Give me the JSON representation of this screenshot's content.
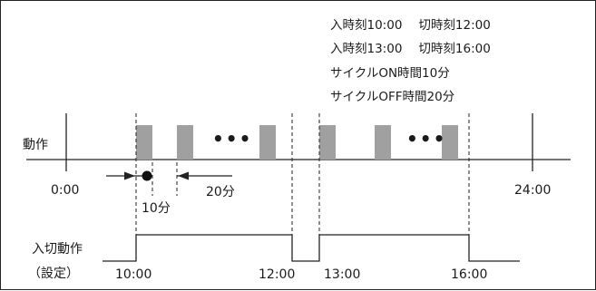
{
  "notes": [
    {
      "a": "入時刻10:00",
      "b": "切時刻12:00"
    },
    {
      "a": "入時刻13:00",
      "b": "切時刻16:00"
    },
    {
      "a": "サイクルON時間10分",
      "b": ""
    },
    {
      "a": "サイクルOFF時間20分",
      "b": ""
    }
  ],
  "operation_label": "動作",
  "timeline_start": "0:00",
  "timeline_end": "24:00",
  "cycle_on": "10分",
  "cycle_off": "20分",
  "ellipsis": "•••",
  "onoff_label": "入切動作",
  "setting_label": "（設定）",
  "times": [
    "10:00",
    "12:00",
    "13:00",
    "16:00"
  ],
  "colors": {
    "pulse": "#a0a0a0",
    "line": "#222222"
  }
}
